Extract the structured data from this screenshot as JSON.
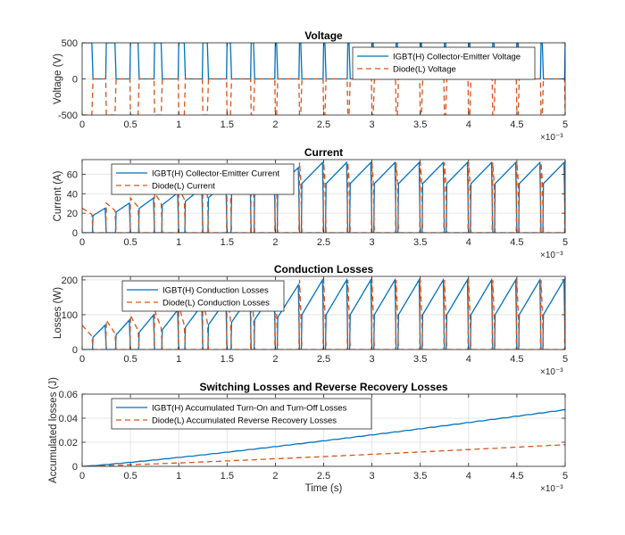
{
  "figure": {
    "background": "#ffffff",
    "colors": {
      "igbt": "#0072BD",
      "diode": "#D95319",
      "axis": "#262626",
      "grid": "#dfdfdf"
    }
  },
  "chart_data": [
    {
      "type": "line",
      "title": "Voltage",
      "xlabel": "",
      "ylabel": "Voltage (V)",
      "xlim": [
        0,
        0.005
      ],
      "ylim": [
        -500,
        500
      ],
      "xticks": [
        "0",
        "0.5",
        "1",
        "1.5",
        "2",
        "2.5",
        "3",
        "3.5",
        "4",
        "4.5",
        "5"
      ],
      "yticks": [
        "-500",
        "0",
        "500"
      ],
      "x_exponent": "×10⁻³",
      "grid": true,
      "legend": "top-right",
      "series": [
        {
          "name": "IGBT(H) Collector-Emitter Voltage",
          "style": "solid",
          "color": "#0072BD",
          "pattern": "voltage_igbt",
          "high": 500,
          "low": 0
        },
        {
          "name": "Diode(L) Voltage",
          "style": "dashed",
          "color": "#D95319",
          "pattern": "voltage_diode",
          "high": 0,
          "low": -500
        }
      ]
    },
    {
      "type": "line",
      "title": "Current",
      "xlabel": "",
      "ylabel": "Current (A)",
      "xlim": [
        0,
        0.005
      ],
      "ylim": [
        0,
        75
      ],
      "xticks": [
        "0",
        "0.5",
        "1",
        "1.5",
        "2",
        "2.5",
        "3",
        "3.5",
        "4",
        "4.5",
        "5"
      ],
      "yticks": [
        "0",
        "20",
        "40",
        "60"
      ],
      "x_exponent": "×10⁻³",
      "grid": true,
      "legend": "top-left",
      "series": [
        {
          "name": "IGBT(H) Collector-Emitter Current",
          "style": "solid",
          "color": "#0072BD",
          "pattern": "current_igbt",
          "peak_final": 72
        },
        {
          "name": "Diode(L) Current",
          "style": "dashed",
          "color": "#D95319",
          "pattern": "current_diode",
          "peak_final": 72
        }
      ]
    },
    {
      "type": "line",
      "title": "Conduction Losses",
      "xlabel": "",
      "ylabel": "Losses (W)",
      "xlim": [
        0,
        0.005
      ],
      "ylim": [
        0,
        210
      ],
      "xticks": [
        "0",
        "0.5",
        "1",
        "1.5",
        "2",
        "2.5",
        "3",
        "3.5",
        "4",
        "4.5",
        "5"
      ],
      "yticks": [
        "0",
        "100",
        "200"
      ],
      "x_exponent": "×10⁻³",
      "grid": true,
      "legend": "top-left",
      "series": [
        {
          "name": "IGBT(H) Conduction Losses",
          "style": "solid",
          "color": "#0072BD",
          "pattern": "loss_igbt",
          "peak_final": 200
        },
        {
          "name": "Diode(L) Conduction Losses",
          "style": "dashed",
          "color": "#D95319",
          "pattern": "loss_diode",
          "peak_final": 200
        }
      ]
    },
    {
      "type": "line",
      "title": "Switching Losses and Reverse Recovery Losses",
      "xlabel": "Time (s)",
      "ylabel": "Accumulated losses (J)",
      "xlim": [
        0,
        0.005
      ],
      "ylim": [
        0,
        0.06
      ],
      "xticks": [
        "0",
        "0.5",
        "1",
        "1.5",
        "2",
        "2.5",
        "3",
        "3.5",
        "4",
        "4.5",
        "5"
      ],
      "yticks": [
        "0",
        "0.02",
        "0.04",
        "0.06"
      ],
      "x_exponent": "×10⁻³",
      "grid": true,
      "legend": "top-left",
      "series": [
        {
          "name": "IGBT(H) Accumulated Turn-On and Turn-Off Losses",
          "style": "solid",
          "color": "#0072BD",
          "pattern": "accum",
          "final": 0.047
        },
        {
          "name": "Diode(L) Accumulated Reverse Recovery Losses",
          "style": "dashed",
          "color": "#D95319",
          "pattern": "accum",
          "final": 0.018
        }
      ]
    }
  ]
}
